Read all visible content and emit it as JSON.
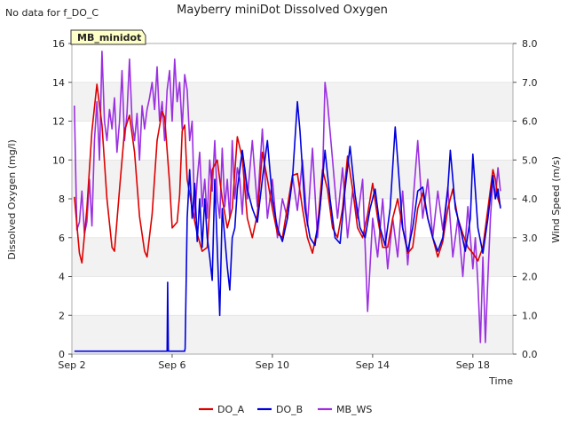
{
  "note": "No data for f_DO_C",
  "chart_data": {
    "type": "line",
    "title": "Mayberry miniDot Dissolved Oxygen",
    "badge": "MB_minidot",
    "xlabel": "Time",
    "ylabel_left": "Dissolved Oxygen (mg/l)",
    "ylabel_right": "Wind Speed (m/s)",
    "x_range_days": [
      2,
      19.6
    ],
    "x_ticks": [
      {
        "day": 2,
        "label": "Sep 2"
      },
      {
        "day": 6,
        "label": "Sep 6"
      },
      {
        "day": 10,
        "label": "Sep 10"
      },
      {
        "day": 14,
        "label": "Sep 14"
      },
      {
        "day": 18,
        "label": "Sep 18"
      }
    ],
    "ylim_left": [
      0,
      16
    ],
    "yticks_left": [
      "0",
      "2",
      "4",
      "6",
      "8",
      "10",
      "12",
      "14",
      "16"
    ],
    "ylim_right": [
      0,
      8
    ],
    "yticks_right": [
      "0.0",
      "1.0",
      "2.0",
      "3.0",
      "4.0",
      "5.0",
      "6.0",
      "7.0",
      "8.0"
    ],
    "grid_bands": true,
    "legend_placement": "bottom-center",
    "series": [
      {
        "name": "DO_A",
        "color": "#dd0000",
        "axis": "left",
        "points": [
          [
            2.1,
            8.1
          ],
          [
            2.3,
            5.2
          ],
          [
            2.4,
            4.7
          ],
          [
            2.6,
            7.5
          ],
          [
            2.8,
            11.5
          ],
          [
            3.0,
            13.9
          ],
          [
            3.2,
            11.8
          ],
          [
            3.4,
            8.0
          ],
          [
            3.6,
            5.5
          ],
          [
            3.7,
            5.3
          ],
          [
            3.9,
            8.5
          ],
          [
            4.1,
            11.5
          ],
          [
            4.3,
            12.3
          ],
          [
            4.5,
            10.4
          ],
          [
            4.7,
            7.1
          ],
          [
            4.9,
            5.3
          ],
          [
            5.0,
            5.0
          ],
          [
            5.2,
            7.2
          ],
          [
            5.4,
            11.0
          ],
          [
            5.6,
            12.5
          ],
          [
            5.7,
            12.2
          ],
          [
            5.9,
            8.8
          ],
          [
            6.0,
            6.5
          ],
          [
            6.2,
            6.8
          ],
          [
            6.3,
            8.2
          ],
          [
            6.4,
            11.5
          ],
          [
            6.5,
            11.8
          ],
          [
            6.6,
            9.0
          ],
          [
            6.8,
            7.5
          ],
          [
            7.0,
            6.2
          ],
          [
            7.2,
            5.3
          ],
          [
            7.4,
            5.5
          ],
          [
            7.6,
            9.5
          ],
          [
            7.8,
            10.0
          ],
          [
            8.0,
            8.0
          ],
          [
            8.2,
            6.5
          ],
          [
            8.4,
            7.5
          ],
          [
            8.6,
            11.2
          ],
          [
            8.8,
            10.1
          ],
          [
            9.0,
            7.0
          ],
          [
            9.2,
            6.0
          ],
          [
            9.4,
            7.2
          ],
          [
            9.6,
            10.4
          ],
          [
            9.8,
            9.0
          ],
          [
            10.0,
            7.5
          ],
          [
            10.2,
            6.2
          ],
          [
            10.4,
            6.0
          ],
          [
            10.6,
            7.6
          ],
          [
            10.8,
            9.2
          ],
          [
            11.0,
            9.3
          ],
          [
            11.2,
            7.5
          ],
          [
            11.4,
            6.0
          ],
          [
            11.6,
            5.2
          ],
          [
            11.8,
            6.5
          ],
          [
            12.0,
            9.5
          ],
          [
            12.2,
            8.5
          ],
          [
            12.4,
            6.5
          ],
          [
            12.6,
            6.0
          ],
          [
            12.8,
            7.5
          ],
          [
            13.0,
            10.2
          ],
          [
            13.2,
            8.5
          ],
          [
            13.4,
            6.5
          ],
          [
            13.6,
            6.0
          ],
          [
            13.8,
            7.2
          ],
          [
            14.0,
            8.8
          ],
          [
            14.2,
            7.0
          ],
          [
            14.4,
            5.5
          ],
          [
            14.6,
            5.5
          ],
          [
            14.8,
            7.0
          ],
          [
            15.0,
            8.0
          ],
          [
            15.2,
            6.5
          ],
          [
            15.4,
            5.2
          ],
          [
            15.6,
            5.5
          ],
          [
            15.8,
            7.5
          ],
          [
            16.0,
            8.3
          ],
          [
            16.2,
            7.0
          ],
          [
            16.4,
            6.0
          ],
          [
            16.6,
            5.0
          ],
          [
            16.8,
            5.8
          ],
          [
            17.0,
            7.5
          ],
          [
            17.2,
            8.5
          ],
          [
            17.4,
            7.0
          ],
          [
            17.6,
            6.2
          ],
          [
            17.8,
            5.5
          ],
          [
            18.0,
            5.2
          ],
          [
            18.2,
            4.8
          ],
          [
            18.4,
            5.5
          ],
          [
            18.6,
            7.5
          ],
          [
            18.8,
            9.5
          ],
          [
            18.9,
            9.0
          ],
          [
            19.0,
            8.0
          ],
          [
            19.1,
            7.6
          ]
        ]
      },
      {
        "name": "DO_B",
        "color": "#0000dd",
        "axis": "left",
        "points": [
          [
            2.1,
            0.15
          ],
          [
            5.8,
            0.15
          ],
          [
            5.82,
            3.7
          ],
          [
            5.85,
            0.15
          ],
          [
            6.5,
            0.15
          ],
          [
            6.52,
            0.3
          ],
          [
            6.6,
            7.0
          ],
          [
            6.7,
            9.5
          ],
          [
            6.8,
            7.0
          ],
          [
            6.9,
            8.8
          ],
          [
            7.0,
            5.8
          ],
          [
            7.1,
            8.0
          ],
          [
            7.2,
            5.5
          ],
          [
            7.3,
            8.0
          ],
          [
            7.4,
            6.0
          ],
          [
            7.5,
            5.0
          ],
          [
            7.6,
            3.8
          ],
          [
            7.7,
            9.0
          ],
          [
            7.8,
            5.5
          ],
          [
            7.9,
            2.0
          ],
          [
            8.0,
            7.5
          ],
          [
            8.1,
            6.0
          ],
          [
            8.2,
            4.5
          ],
          [
            8.3,
            3.3
          ],
          [
            8.4,
            6.0
          ],
          [
            8.5,
            6.5
          ],
          [
            8.6,
            8.5
          ],
          [
            8.8,
            10.5
          ],
          [
            9.0,
            8.5
          ],
          [
            9.2,
            7.5
          ],
          [
            9.4,
            6.8
          ],
          [
            9.6,
            9.0
          ],
          [
            9.8,
            11.0
          ],
          [
            10.0,
            8.0
          ],
          [
            10.2,
            6.5
          ],
          [
            10.4,
            5.8
          ],
          [
            10.6,
            7.0
          ],
          [
            10.8,
            9.0
          ],
          [
            11.0,
            13.0
          ],
          [
            11.1,
            11.5
          ],
          [
            11.3,
            7.5
          ],
          [
            11.5,
            6.0
          ],
          [
            11.7,
            5.6
          ],
          [
            11.9,
            7.5
          ],
          [
            12.1,
            10.5
          ],
          [
            12.3,
            8.0
          ],
          [
            12.5,
            6.0
          ],
          [
            12.7,
            5.7
          ],
          [
            12.9,
            8.5
          ],
          [
            13.1,
            10.7
          ],
          [
            13.3,
            8.2
          ],
          [
            13.5,
            6.5
          ],
          [
            13.7,
            6.0
          ],
          [
            13.9,
            7.5
          ],
          [
            14.1,
            8.5
          ],
          [
            14.3,
            6.5
          ],
          [
            14.5,
            5.6
          ],
          [
            14.7,
            7.5
          ],
          [
            14.9,
            11.7
          ],
          [
            15.0,
            10.0
          ],
          [
            15.2,
            6.5
          ],
          [
            15.4,
            5.3
          ],
          [
            15.6,
            6.5
          ],
          [
            15.8,
            8.4
          ],
          [
            16.0,
            8.6
          ],
          [
            16.2,
            7.0
          ],
          [
            16.4,
            6.0
          ],
          [
            16.6,
            5.3
          ],
          [
            16.8,
            6.0
          ],
          [
            17.0,
            8.5
          ],
          [
            17.1,
            10.5
          ],
          [
            17.3,
            7.5
          ],
          [
            17.5,
            6.5
          ],
          [
            17.7,
            5.3
          ],
          [
            17.9,
            7.0
          ],
          [
            18.0,
            10.3
          ],
          [
            18.2,
            6.5
          ],
          [
            18.4,
            5.2
          ],
          [
            18.6,
            7.0
          ],
          [
            18.8,
            9.2
          ],
          [
            18.9,
            8.0
          ],
          [
            19.0,
            8.5
          ],
          [
            19.1,
            7.5
          ]
        ]
      },
      {
        "name": "MB_WS",
        "color": "#9b30e0",
        "axis": "right",
        "points": [
          [
            2.1,
            6.4
          ],
          [
            2.2,
            3.2
          ],
          [
            2.3,
            3.4
          ],
          [
            2.4,
            4.2
          ],
          [
            2.5,
            3.1
          ],
          [
            2.6,
            3.4
          ],
          [
            2.7,
            4.5
          ],
          [
            2.8,
            3.3
          ],
          [
            2.9,
            5.5
          ],
          [
            3.0,
            6.5
          ],
          [
            3.1,
            5.0
          ],
          [
            3.2,
            7.8
          ],
          [
            3.3,
            6.0
          ],
          [
            3.4,
            5.5
          ],
          [
            3.5,
            6.3
          ],
          [
            3.6,
            5.8
          ],
          [
            3.7,
            6.6
          ],
          [
            3.8,
            5.2
          ],
          [
            3.9,
            6.0
          ],
          [
            4.0,
            7.3
          ],
          [
            4.1,
            5.5
          ],
          [
            4.2,
            6.2
          ],
          [
            4.3,
            7.6
          ],
          [
            4.4,
            6.0
          ],
          [
            4.5,
            5.5
          ],
          [
            4.6,
            6.2
          ],
          [
            4.7,
            5.0
          ],
          [
            4.8,
            6.4
          ],
          [
            4.9,
            5.8
          ],
          [
            5.0,
            6.3
          ],
          [
            5.1,
            6.6
          ],
          [
            5.2,
            7.0
          ],
          [
            5.3,
            6.3
          ],
          [
            5.4,
            7.4
          ],
          [
            5.5,
            6.0
          ],
          [
            5.6,
            6.5
          ],
          [
            5.7,
            5.5
          ],
          [
            5.8,
            6.8
          ],
          [
            5.9,
            7.3
          ],
          [
            6.0,
            6.0
          ],
          [
            6.1,
            7.6
          ],
          [
            6.2,
            6.5
          ],
          [
            6.3,
            7.0
          ],
          [
            6.4,
            5.8
          ],
          [
            6.5,
            7.2
          ],
          [
            6.6,
            6.8
          ],
          [
            6.7,
            5.5
          ],
          [
            6.8,
            6.0
          ],
          [
            6.9,
            3.5
          ],
          [
            7.0,
            4.5
          ],
          [
            7.1,
            5.2
          ],
          [
            7.2,
            3.8
          ],
          [
            7.3,
            4.5
          ],
          [
            7.4,
            3.5
          ],
          [
            7.5,
            5.0
          ],
          [
            7.6,
            4.2
          ],
          [
            7.7,
            5.5
          ],
          [
            7.8,
            4.0
          ],
          [
            7.9,
            3.5
          ],
          [
            8.0,
            5.3
          ],
          [
            8.1,
            3.8
          ],
          [
            8.2,
            4.5
          ],
          [
            8.3,
            3.5
          ],
          [
            8.4,
            5.5
          ],
          [
            8.5,
            4.0
          ],
          [
            8.6,
            4.8
          ],
          [
            8.7,
            4.5
          ],
          [
            8.8,
            3.6
          ],
          [
            8.9,
            4.8
          ],
          [
            9.0,
            4.0
          ],
          [
            9.2,
            5.5
          ],
          [
            9.4,
            3.8
          ],
          [
            9.6,
            5.8
          ],
          [
            9.8,
            3.5
          ],
          [
            10.0,
            4.5
          ],
          [
            10.2,
            3.0
          ],
          [
            10.4,
            4.0
          ],
          [
            10.6,
            3.5
          ],
          [
            10.8,
            4.6
          ],
          [
            11.0,
            3.7
          ],
          [
            11.2,
            5.0
          ],
          [
            11.4,
            3.3
          ],
          [
            11.6,
            5.3
          ],
          [
            11.8,
            3.0
          ],
          [
            12.0,
            4.5
          ],
          [
            12.1,
            7.0
          ],
          [
            12.2,
            6.5
          ],
          [
            12.4,
            5.0
          ],
          [
            12.6,
            3.5
          ],
          [
            12.8,
            4.8
          ],
          [
            13.0,
            3.0
          ],
          [
            13.2,
            4.2
          ],
          [
            13.4,
            3.5
          ],
          [
            13.6,
            4.5
          ],
          [
            13.8,
            1.1
          ],
          [
            14.0,
            3.5
          ],
          [
            14.2,
            2.5
          ],
          [
            14.4,
            4.0
          ],
          [
            14.6,
            2.2
          ],
          [
            14.8,
            3.5
          ],
          [
            15.0,
            2.5
          ],
          [
            15.2,
            4.2
          ],
          [
            15.4,
            2.3
          ],
          [
            15.6,
            3.8
          ],
          [
            15.8,
            5.5
          ],
          [
            16.0,
            3.5
          ],
          [
            16.2,
            4.5
          ],
          [
            16.4,
            3.0
          ],
          [
            16.6,
            4.2
          ],
          [
            16.8,
            3.2
          ],
          [
            17.0,
            4.3
          ],
          [
            17.2,
            2.5
          ],
          [
            17.4,
            3.5
          ],
          [
            17.6,
            2.0
          ],
          [
            17.8,
            3.8
          ],
          [
            18.0,
            2.2
          ],
          [
            18.1,
            3.0
          ],
          [
            18.2,
            1.8
          ],
          [
            18.3,
            0.3
          ],
          [
            18.4,
            2.5
          ],
          [
            18.5,
            0.3
          ],
          [
            18.6,
            2.0
          ],
          [
            18.7,
            3.5
          ],
          [
            18.8,
            4.5
          ],
          [
            18.9,
            4.0
          ],
          [
            19.0,
            4.8
          ],
          [
            19.1,
            4.2
          ]
        ]
      }
    ]
  }
}
